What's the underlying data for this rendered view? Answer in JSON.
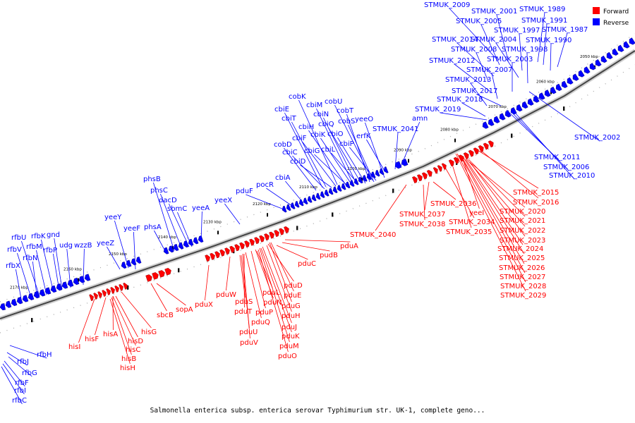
{
  "caption": "Salmonella enterica subsp. enterica serovar Typhimurium str. UK-1, complete geno...",
  "legend": [
    {
      "label": "Forward",
      "color": "#ff0000"
    },
    {
      "label": "Reverse",
      "color": "#0000ff"
    }
  ],
  "colors": {
    "forward": "#ff0000",
    "reverse": "#0000ff",
    "backbone": "#888888"
  },
  "scale_labels": [
    "2050 kbp",
    "2060 kbp",
    "2070 kbp",
    "2080 kbp",
    "2090 kbp",
    "2100 kbp",
    "2110 kbp",
    "2120 kbp",
    "2130 kbp",
    "2140 kbp",
    "2150 kbp",
    "2160 kbp",
    "2170 kbp"
  ],
  "reverse_labels": [
    "STMUK_2009",
    "STMUK_2001",
    "STMUK_1989",
    "STMUK_2005",
    "STMUK_1991",
    "STMUK_1997",
    "STMUK_1987",
    "STMUK_2014",
    "STMUK_2004",
    "STMUK_1990",
    "STMUK_2008",
    "STMUK_1998",
    "STMUK_2012",
    "STMUK_2003",
    "STMUK_2007",
    "STMUK_2013",
    "STMUK_2017",
    "STMUK_2018",
    "STMUK_2019",
    "amn",
    "STMUK_2041",
    "erfK",
    "cobK",
    "cobU",
    "cbiM",
    "cbiE",
    "cobT",
    "cbiN",
    "cbiT",
    "cobS",
    "yeeO",
    "cbiH",
    "cbiQ",
    "cbiK",
    "cbiO",
    "cbiF",
    "cobD",
    "cbiG",
    "cbiL",
    "cbiP",
    "cbiC",
    "cbiD",
    "cbiA",
    "pocR",
    "pduF",
    "phsB",
    "phsC",
    "dacD",
    "yeeX",
    "sbmC",
    "yeeA",
    "phsA",
    "yeeY",
    "yeeF",
    "yeeZ",
    "rfbU",
    "rfbK",
    "gnd",
    "rfbV",
    "rfbM",
    "rfbP",
    "udg",
    "wzzB",
    "rfbN",
    "rfbX",
    "rfbH",
    "rfbJ",
    "rfbG",
    "rfbF",
    "rfbI",
    "rfbC",
    "STMUK_2002",
    "STMUK_2011",
    "STMUK_2006",
    "STMUK_2010"
  ],
  "forward_labels": [
    "STMUK_2015",
    "STMUK_2016",
    "STMUK_2036",
    "STMUK_2037",
    "STMUK_2034",
    "yeeI",
    "STMUK_2020",
    "STMUK_2038",
    "STMUK_2035",
    "STMUK_2021",
    "STMUK_2022",
    "STMUK_2040",
    "STMUK_2023",
    "STMUK_2024",
    "STMUK_2025",
    "STMUK_2026",
    "STMUK_2027",
    "STMUK_2028",
    "STMUK_2029",
    "pduA",
    "pudB",
    "pduC",
    "pduX",
    "sopA",
    "sbcB",
    "pduW",
    "pduS",
    "pduT",
    "pduL",
    "pduN",
    "pduP",
    "pduQ",
    "pduU",
    "pduV",
    "pduD",
    "pduE",
    "pduG",
    "pduH",
    "pduJ",
    "pduK",
    "pduM",
    "pduO",
    "hisG",
    "hisA",
    "hisF",
    "hisD",
    "hisI",
    "hisC",
    "hisB",
    "hisH"
  ]
}
